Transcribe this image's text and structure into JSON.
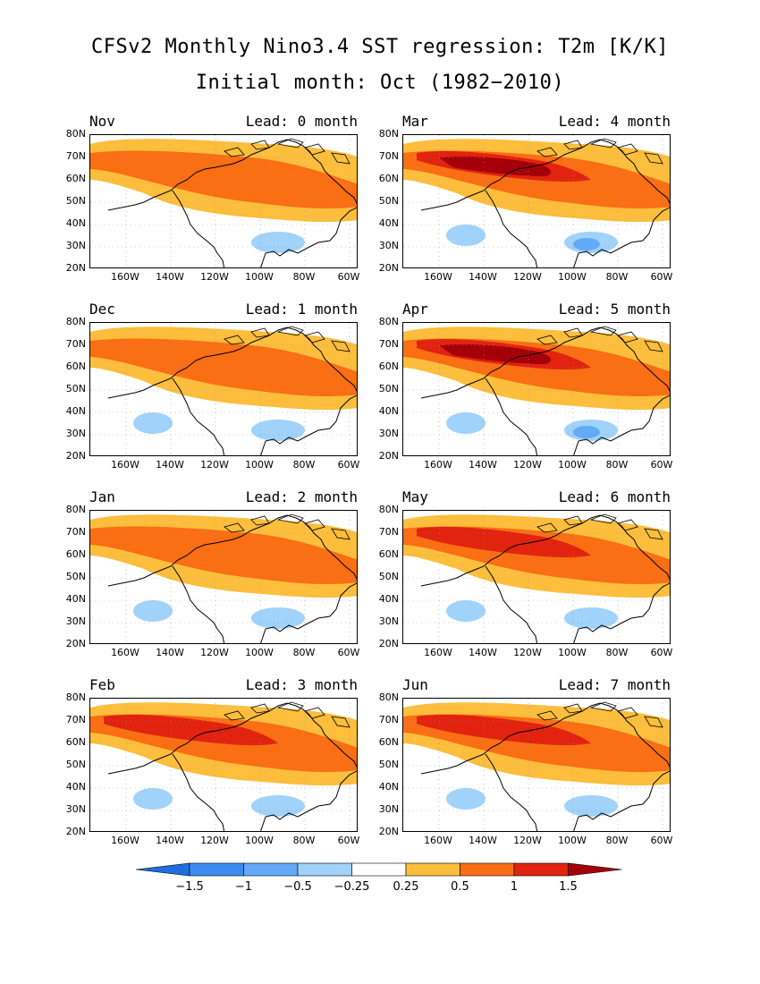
{
  "title": "CFSv2 Monthly Nino3.4 SST regression: T2m [K/K]",
  "subtitle": "Initial month: Oct (1982−2010)",
  "y_ticks": [
    "80N",
    "70N",
    "60N",
    "50N",
    "40N",
    "30N",
    "20N"
  ],
  "x_ticks": [
    "160W",
    "140W",
    "120W",
    "100W",
    "80W",
    "60W"
  ],
  "panels": [
    {
      "month": "Nov",
      "lead": "Lead: 0 month",
      "intensity": 1
    },
    {
      "month": "Dec",
      "lead": "Lead: 1 month",
      "intensity": 2
    },
    {
      "month": "Jan",
      "lead": "Lead: 2 month",
      "intensity": 2
    },
    {
      "month": "Feb",
      "lead": "Lead: 3 month",
      "intensity": 3
    },
    {
      "month": "Mar",
      "lead": "Lead: 4 month",
      "intensity": 4
    },
    {
      "month": "Apr",
      "lead": "Lead: 5 month",
      "intensity": 4
    },
    {
      "month": "May",
      "lead": "Lead: 6 month",
      "intensity": 3
    },
    {
      "month": "Jun",
      "lead": "Lead: 7 month",
      "intensity": 3
    }
  ],
  "colorbar": {
    "labels": [
      "−1.5",
      "−1",
      "−0.5",
      "−0.25",
      "0.25",
      "0.5",
      "1",
      "1.5"
    ],
    "colors": [
      "#1e6ee0",
      "#3c8cf0",
      "#64aaf8",
      "#a0d2fa",
      "#ffffff",
      "#fcbe3c",
      "#fa6e14",
      "#e1230f",
      "#a5000a"
    ]
  },
  "colors": {
    "light_orange": "#fcbe3c",
    "orange": "#fa6e14",
    "red": "#e1230f",
    "dark_red": "#a5000a",
    "light_blue": "#a0d2fa",
    "blue": "#64aaf8"
  }
}
